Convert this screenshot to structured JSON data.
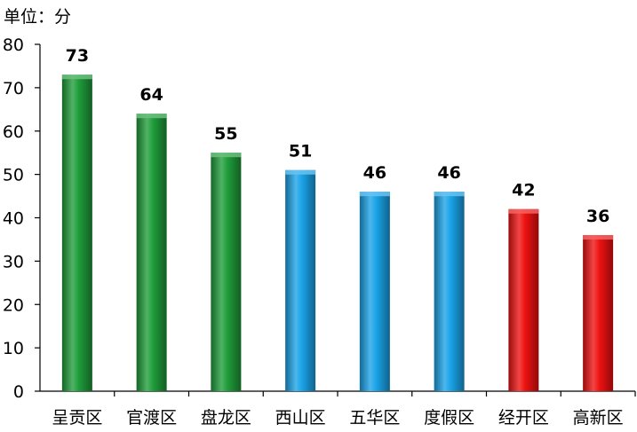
{
  "chart_data": {
    "type": "bar",
    "unit_label": "单位：分",
    "categories": [
      "呈贡区",
      "官渡区",
      "盘龙区",
      "西山区",
      "五华区",
      "度假区",
      "经开区",
      "高新区"
    ],
    "values": [
      73,
      64,
      55,
      51,
      46,
      46,
      42,
      36
    ],
    "bar_colors": [
      "#1f9d3a",
      "#1f9d3a",
      "#1f9d3a",
      "#1aa3e8",
      "#1aa3e8",
      "#1aa3e8",
      "#ee1111",
      "#ee1111"
    ],
    "ylim": [
      0,
      80
    ],
    "yticks": [
      0,
      10,
      20,
      30,
      40,
      50,
      60,
      70,
      80
    ],
    "grid": false,
    "legend": "none"
  }
}
